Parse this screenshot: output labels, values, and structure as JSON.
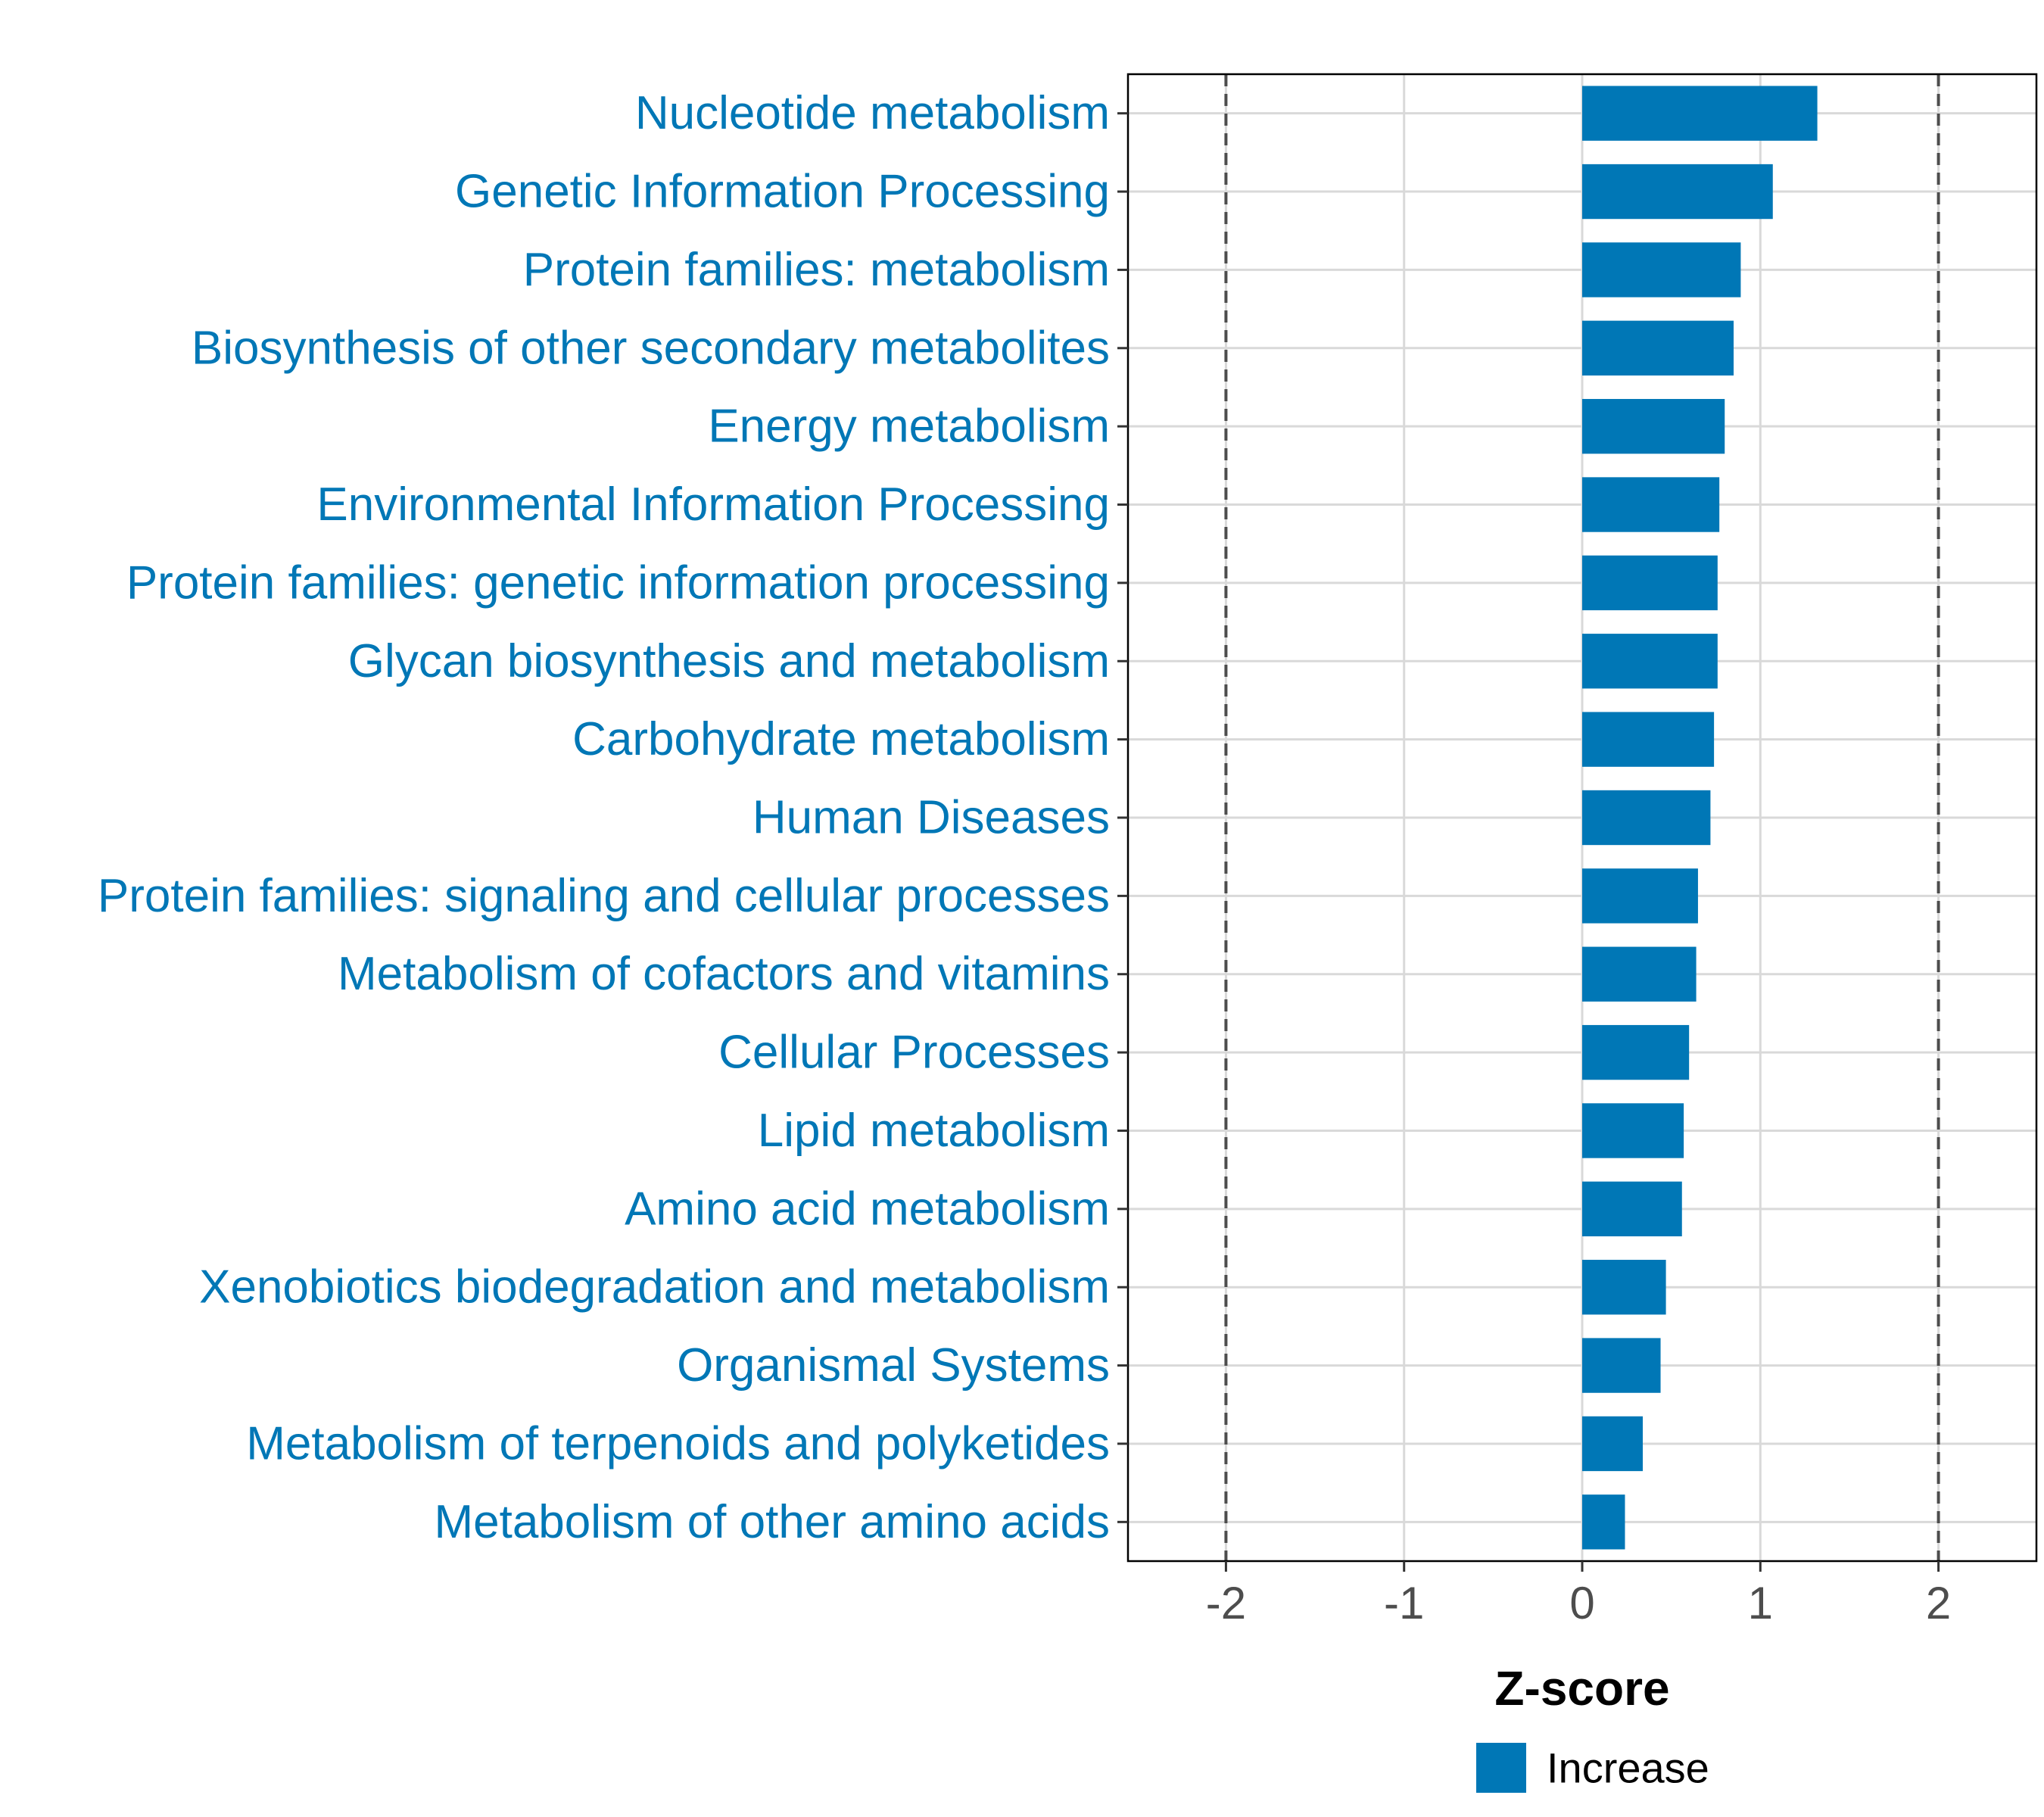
{
  "colors": {
    "bar": "#0077b6",
    "category_label": "#0077b6",
    "grid": "#d9d9d9",
    "threshold_line": "#4d4d4d",
    "panel_border": "#000000"
  },
  "chart_data": {
    "type": "bar",
    "orientation": "horizontal",
    "title": "",
    "xlabel": "Z-score",
    "ylabel": "",
    "xlim": [
      -2.55,
      2.55
    ],
    "xticks": [
      -2,
      -1,
      0,
      1,
      2
    ],
    "xtick_labels": [
      "-2",
      "-1",
      "0",
      "1",
      "2"
    ],
    "threshold_lines": [
      -2,
      2
    ],
    "grid": true,
    "categories": [
      "Nucleotide metabolism",
      "Genetic Information Processing",
      "Protein families: metabolism",
      "Biosynthesis of other secondary metabolites",
      "Energy metabolism",
      "Environmental Information Processing",
      "Protein families: genetic information processing",
      "Glycan biosynthesis and metabolism",
      "Carbohydrate metabolism",
      "Human Diseases",
      "Protein families: signaling and cellular processes",
      "Metabolism of cofactors and vitamins",
      "Cellular Processes",
      "Lipid metabolism",
      "Amino acid metabolism",
      "Xenobiotics biodegradation and metabolism",
      "Organismal Systems",
      "Metabolism of terpenoids and polyketides",
      "Metabolism of other amino acids"
    ],
    "values": [
      1.32,
      1.07,
      0.89,
      0.85,
      0.8,
      0.77,
      0.76,
      0.76,
      0.74,
      0.72,
      0.65,
      0.64,
      0.6,
      0.57,
      0.56,
      0.47,
      0.44,
      0.34,
      0.24
    ],
    "series": [
      {
        "name": "Increase",
        "values": [
          1.32,
          1.07,
          0.89,
          0.85,
          0.8,
          0.77,
          0.76,
          0.76,
          0.74,
          0.72,
          0.65,
          0.64,
          0.6,
          0.57,
          0.56,
          0.47,
          0.44,
          0.34,
          0.24
        ]
      }
    ],
    "legend": {
      "placement": "bottom",
      "entries": [
        "Increase"
      ]
    }
  }
}
